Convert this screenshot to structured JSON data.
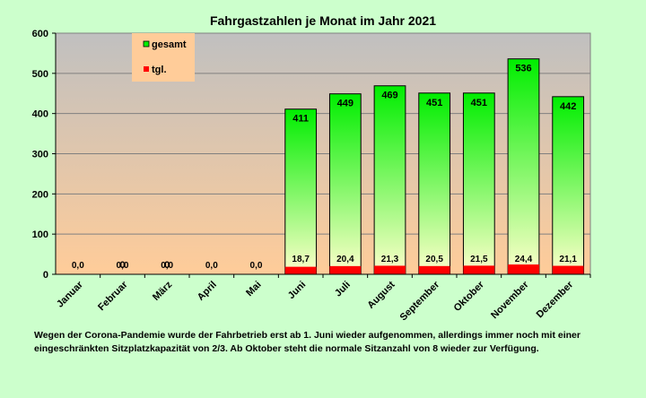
{
  "chart_data": {
    "type": "bar",
    "title": "Fahrgastzahlen je Monat im Jahr 2021",
    "categories": [
      "Januar",
      "Februar",
      "März",
      "April",
      "Mai",
      "Juni",
      "Juli",
      "August",
      "September",
      "Oktober",
      "November",
      "Dezember"
    ],
    "series": [
      {
        "name": "gesamt",
        "values": [
          0,
          0,
          0,
          0,
          0,
          411,
          449,
          469,
          451,
          451,
          536,
          442
        ],
        "labels": [
          "",
          "0",
          "0",
          "",
          "",
          "411",
          "449",
          "469",
          "451",
          "451",
          "536",
          "442"
        ],
        "color": "#00ee00"
      },
      {
        "name": "tgl.",
        "values": [
          0,
          0,
          0,
          0,
          0,
          18.7,
          20.4,
          21.3,
          20.5,
          21.5,
          24.4,
          21.1
        ],
        "labels": [
          "0,0",
          "0,0",
          "0,0",
          "0,0",
          "0,0",
          "18,7",
          "20,4",
          "21,3",
          "20,5",
          "21,5",
          "24,4",
          "21,1"
        ],
        "color": "#ff0000"
      }
    ],
    "ylim": [
      0,
      600
    ],
    "yticks": [
      "0",
      "100",
      "200",
      "300",
      "400",
      "500",
      "600"
    ],
    "grid": true,
    "legend": "top-left"
  },
  "note": "Wegen der Corona-Pandemie wurde der Fahrbetrieb erst ab 1. Juni  wieder aufgenommen, allerdings immer noch mit einer eingeschränkten Sitzplatzkapazität von 2/3. Ab Oktober steht die normale Sitzanzahl von 8 wieder zur Verfügung."
}
